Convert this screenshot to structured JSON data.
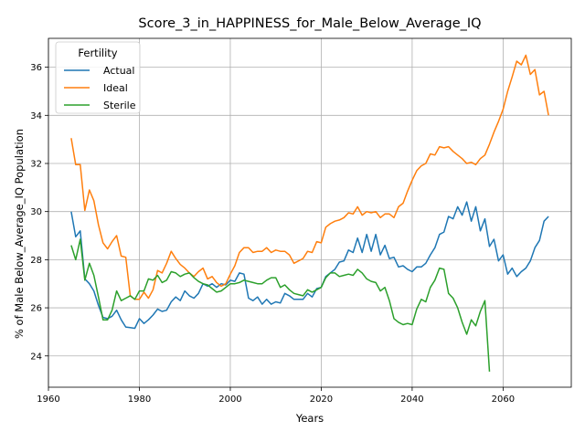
{
  "chart_data": {
    "type": "line",
    "title": "Score_3_in_HAPPINESS_for_Male_Below_Average_IQ",
    "xlabel": "Years",
    "ylabel": "% of Male Below_Average_IQ Population",
    "xlim": [
      1960,
      2075
    ],
    "ylim": [
      22.7,
      37.2
    ],
    "x_ticks": [
      "1960",
      "1980",
      "2000",
      "2020",
      "2040",
      "2060"
    ],
    "y_ticks": [
      "24",
      "26",
      "28",
      "30",
      "32",
      "34",
      "36"
    ],
    "grid": true,
    "legend_title": "Fertility",
    "legend_position": "top-left",
    "series": [
      {
        "name": "Actual",
        "color": "#1f77b4",
        "points": [
          [
            1965,
            30.0
          ],
          [
            1966,
            28.95
          ],
          [
            1967,
            29.2
          ],
          [
            1968,
            27.2
          ],
          [
            1969,
            27.0
          ],
          [
            1970,
            26.7
          ],
          [
            1971,
            26.1
          ],
          [
            1972,
            25.6
          ],
          [
            1973,
            25.55
          ],
          [
            1974,
            25.65
          ],
          [
            1975,
            25.9
          ],
          [
            1976,
            25.5
          ],
          [
            1977,
            25.2
          ],
          [
            1978,
            25.18
          ],
          [
            1979,
            25.15
          ],
          [
            1980,
            25.55
          ],
          [
            1981,
            25.35
          ],
          [
            1982,
            25.5
          ],
          [
            1983,
            25.7
          ],
          [
            1984,
            25.95
          ],
          [
            1985,
            25.85
          ],
          [
            1986,
            25.9
          ],
          [
            1987,
            26.25
          ],
          [
            1988,
            26.45
          ],
          [
            1989,
            26.3
          ],
          [
            1990,
            26.7
          ],
          [
            1991,
            26.5
          ],
          [
            1992,
            26.4
          ],
          [
            1993,
            26.6
          ],
          [
            1994,
            27.0
          ],
          [
            1995,
            26.9
          ],
          [
            1996,
            27.0
          ],
          [
            1997,
            26.85
          ],
          [
            1998,
            27.0
          ],
          [
            1999,
            26.95
          ],
          [
            2000,
            27.15
          ],
          [
            2001,
            27.1
          ],
          [
            2002,
            27.45
          ],
          [
            2003,
            27.4
          ],
          [
            2004,
            26.4
          ],
          [
            2005,
            26.3
          ],
          [
            2006,
            26.45
          ],
          [
            2007,
            26.15
          ],
          [
            2008,
            26.35
          ],
          [
            2009,
            26.15
          ],
          [
            2010,
            26.25
          ],
          [
            2011,
            26.2
          ],
          [
            2012,
            26.6
          ],
          [
            2013,
            26.5
          ],
          [
            2014,
            26.35
          ],
          [
            2015,
            26.35
          ],
          [
            2016,
            26.35
          ],
          [
            2017,
            26.6
          ],
          [
            2018,
            26.45
          ],
          [
            2019,
            26.8
          ],
          [
            2020,
            26.85
          ],
          [
            2021,
            27.3
          ],
          [
            2022,
            27.45
          ],
          [
            2023,
            27.6
          ],
          [
            2024,
            27.9
          ],
          [
            2025,
            27.95
          ],
          [
            2026,
            28.4
          ],
          [
            2027,
            28.3
          ],
          [
            2028,
            28.9
          ],
          [
            2029,
            28.3
          ],
          [
            2030,
            29.05
          ],
          [
            2031,
            28.35
          ],
          [
            2032,
            29.05
          ],
          [
            2033,
            28.2
          ],
          [
            2034,
            28.6
          ],
          [
            2035,
            28.05
          ],
          [
            2036,
            28.1
          ],
          [
            2037,
            27.7
          ],
          [
            2038,
            27.75
          ],
          [
            2039,
            27.6
          ],
          [
            2040,
            27.5
          ],
          [
            2041,
            27.7
          ],
          [
            2042,
            27.7
          ],
          [
            2043,
            27.85
          ],
          [
            2044,
            28.2
          ],
          [
            2045,
            28.5
          ],
          [
            2046,
            29.05
          ],
          [
            2047,
            29.15
          ],
          [
            2048,
            29.8
          ],
          [
            2049,
            29.7
          ],
          [
            2050,
            30.2
          ],
          [
            2051,
            29.85
          ],
          [
            2052,
            30.4
          ],
          [
            2053,
            29.6
          ],
          [
            2054,
            30.2
          ],
          [
            2055,
            29.2
          ],
          [
            2056,
            29.7
          ],
          [
            2057,
            28.55
          ],
          [
            2058,
            28.85
          ],
          [
            2059,
            27.95
          ],
          [
            2060,
            28.2
          ],
          [
            2061,
            27.4
          ],
          [
            2062,
            27.65
          ],
          [
            2063,
            27.3
          ],
          [
            2064,
            27.5
          ],
          [
            2065,
            27.65
          ],
          [
            2066,
            27.95
          ],
          [
            2067,
            28.5
          ],
          [
            2068,
            28.8
          ],
          [
            2069,
            29.6
          ],
          [
            2070,
            29.8
          ]
        ]
      },
      {
        "name": "Ideal",
        "color": "#ff7f0e",
        "points": [
          [
            1965,
            33.05
          ],
          [
            1966,
            31.95
          ],
          [
            1967,
            31.95
          ],
          [
            1968,
            30.05
          ],
          [
            1969,
            30.9
          ],
          [
            1970,
            30.45
          ],
          [
            1971,
            29.45
          ],
          [
            1972,
            28.7
          ],
          [
            1973,
            28.45
          ],
          [
            1974,
            28.75
          ],
          [
            1975,
            29.0
          ],
          [
            1976,
            28.15
          ],
          [
            1977,
            28.1
          ],
          [
            1978,
            26.5
          ],
          [
            1979,
            26.35
          ],
          [
            1980,
            26.35
          ],
          [
            1981,
            26.65
          ],
          [
            1982,
            26.4
          ],
          [
            1983,
            26.75
          ],
          [
            1984,
            27.55
          ],
          [
            1985,
            27.45
          ],
          [
            1986,
            27.85
          ],
          [
            1987,
            28.35
          ],
          [
            1988,
            28.05
          ],
          [
            1989,
            27.8
          ],
          [
            1990,
            27.65
          ],
          [
            1991,
            27.45
          ],
          [
            1992,
            27.3
          ],
          [
            1993,
            27.5
          ],
          [
            1994,
            27.65
          ],
          [
            1995,
            27.2
          ],
          [
            1996,
            27.3
          ],
          [
            1997,
            27.05
          ],
          [
            1998,
            26.9
          ],
          [
            1999,
            27.0
          ],
          [
            2000,
            27.4
          ],
          [
            2001,
            27.75
          ],
          [
            2002,
            28.3
          ],
          [
            2003,
            28.5
          ],
          [
            2004,
            28.5
          ],
          [
            2005,
            28.3
          ],
          [
            2006,
            28.35
          ],
          [
            2007,
            28.35
          ],
          [
            2008,
            28.5
          ],
          [
            2009,
            28.3
          ],
          [
            2010,
            28.4
          ],
          [
            2011,
            28.35
          ],
          [
            2012,
            28.35
          ],
          [
            2013,
            28.2
          ],
          [
            2014,
            27.85
          ],
          [
            2015,
            27.95
          ],
          [
            2016,
            28.05
          ],
          [
            2017,
            28.35
          ],
          [
            2018,
            28.3
          ],
          [
            2019,
            28.75
          ],
          [
            2020,
            28.7
          ],
          [
            2021,
            29.35
          ],
          [
            2022,
            29.5
          ],
          [
            2023,
            29.6
          ],
          [
            2024,
            29.65
          ],
          [
            2025,
            29.75
          ],
          [
            2026,
            29.95
          ],
          [
            2027,
            29.9
          ],
          [
            2028,
            30.2
          ],
          [
            2029,
            29.85
          ],
          [
            2030,
            30.0
          ],
          [
            2031,
            29.95
          ],
          [
            2032,
            30.0
          ],
          [
            2033,
            29.75
          ],
          [
            2034,
            29.9
          ],
          [
            2035,
            29.9
          ],
          [
            2036,
            29.75
          ],
          [
            2037,
            30.2
          ],
          [
            2038,
            30.35
          ],
          [
            2039,
            30.85
          ],
          [
            2040,
            31.3
          ],
          [
            2041,
            31.7
          ],
          [
            2042,
            31.9
          ],
          [
            2043,
            32.0
          ],
          [
            2044,
            32.4
          ],
          [
            2045,
            32.35
          ],
          [
            2046,
            32.7
          ],
          [
            2047,
            32.65
          ],
          [
            2048,
            32.7
          ],
          [
            2049,
            32.5
          ],
          [
            2050,
            32.35
          ],
          [
            2051,
            32.2
          ],
          [
            2052,
            32.0
          ],
          [
            2053,
            32.05
          ],
          [
            2054,
            31.95
          ],
          [
            2055,
            32.2
          ],
          [
            2056,
            32.35
          ],
          [
            2057,
            32.8
          ],
          [
            2058,
            33.3
          ],
          [
            2059,
            33.75
          ],
          [
            2060,
            34.25
          ],
          [
            2061,
            35.0
          ],
          [
            2062,
            35.6
          ],
          [
            2063,
            36.25
          ],
          [
            2064,
            36.1
          ],
          [
            2065,
            36.5
          ],
          [
            2066,
            35.7
          ],
          [
            2067,
            35.9
          ],
          [
            2068,
            34.85
          ],
          [
            2069,
            35.0
          ],
          [
            2070,
            34.0
          ]
        ]
      },
      {
        "name": "Sterile",
        "color": "#2ca02c",
        "points": [
          [
            1965,
            28.6
          ],
          [
            1966,
            28.0
          ],
          [
            1967,
            28.85
          ],
          [
            1968,
            27.15
          ],
          [
            1969,
            27.85
          ],
          [
            1970,
            27.35
          ],
          [
            1971,
            26.45
          ],
          [
            1972,
            25.5
          ],
          [
            1973,
            25.5
          ],
          [
            1974,
            25.9
          ],
          [
            1975,
            26.7
          ],
          [
            1976,
            26.3
          ],
          [
            1977,
            26.4
          ],
          [
            1978,
            26.5
          ],
          [
            1979,
            26.35
          ],
          [
            1980,
            26.7
          ],
          [
            1981,
            26.7
          ],
          [
            1982,
            27.2
          ],
          [
            1983,
            27.15
          ],
          [
            1984,
            27.35
          ],
          [
            1985,
            27.05
          ],
          [
            1986,
            27.15
          ],
          [
            1987,
            27.5
          ],
          [
            1988,
            27.45
          ],
          [
            1989,
            27.3
          ],
          [
            1990,
            27.4
          ],
          [
            1991,
            27.45
          ],
          [
            1992,
            27.25
          ],
          [
            1993,
            27.1
          ],
          [
            1994,
            27.0
          ],
          [
            1995,
            26.95
          ],
          [
            1996,
            26.8
          ],
          [
            1997,
            26.65
          ],
          [
            1998,
            26.7
          ],
          [
            1999,
            26.85
          ],
          [
            2000,
            27.0
          ],
          [
            2001,
            27.0
          ],
          [
            2002,
            27.05
          ],
          [
            2003,
            27.15
          ],
          [
            2004,
            27.1
          ],
          [
            2005,
            27.05
          ],
          [
            2006,
            27.0
          ],
          [
            2007,
            27.0
          ],
          [
            2008,
            27.15
          ],
          [
            2009,
            27.25
          ],
          [
            2010,
            27.25
          ],
          [
            2011,
            26.85
          ],
          [
            2012,
            26.95
          ],
          [
            2013,
            26.75
          ],
          [
            2014,
            26.6
          ],
          [
            2015,
            26.55
          ],
          [
            2016,
            26.5
          ],
          [
            2017,
            26.75
          ],
          [
            2018,
            26.65
          ],
          [
            2019,
            26.75
          ],
          [
            2020,
            26.85
          ],
          [
            2021,
            27.25
          ],
          [
            2022,
            27.45
          ],
          [
            2023,
            27.45
          ],
          [
            2024,
            27.3
          ],
          [
            2025,
            27.35
          ],
          [
            2026,
            27.4
          ],
          [
            2027,
            27.35
          ],
          [
            2028,
            27.6
          ],
          [
            2029,
            27.45
          ],
          [
            2030,
            27.2
          ],
          [
            2031,
            27.1
          ],
          [
            2032,
            27.05
          ],
          [
            2033,
            26.7
          ],
          [
            2034,
            26.85
          ],
          [
            2035,
            26.3
          ],
          [
            2036,
            25.55
          ],
          [
            2037,
            25.4
          ],
          [
            2038,
            25.3
          ],
          [
            2039,
            25.35
          ],
          [
            2040,
            25.3
          ],
          [
            2041,
            25.95
          ],
          [
            2042,
            26.35
          ],
          [
            2043,
            26.25
          ],
          [
            2044,
            26.85
          ],
          [
            2045,
            27.15
          ],
          [
            2046,
            27.65
          ],
          [
            2047,
            27.6
          ],
          [
            2048,
            26.6
          ],
          [
            2049,
            26.4
          ],
          [
            2050,
            26.0
          ],
          [
            2051,
            25.4
          ],
          [
            2052,
            24.9
          ],
          [
            2053,
            25.5
          ],
          [
            2054,
            25.25
          ],
          [
            2055,
            25.85
          ],
          [
            2056,
            26.3
          ],
          [
            2057,
            23.35
          ]
        ]
      }
    ]
  }
}
